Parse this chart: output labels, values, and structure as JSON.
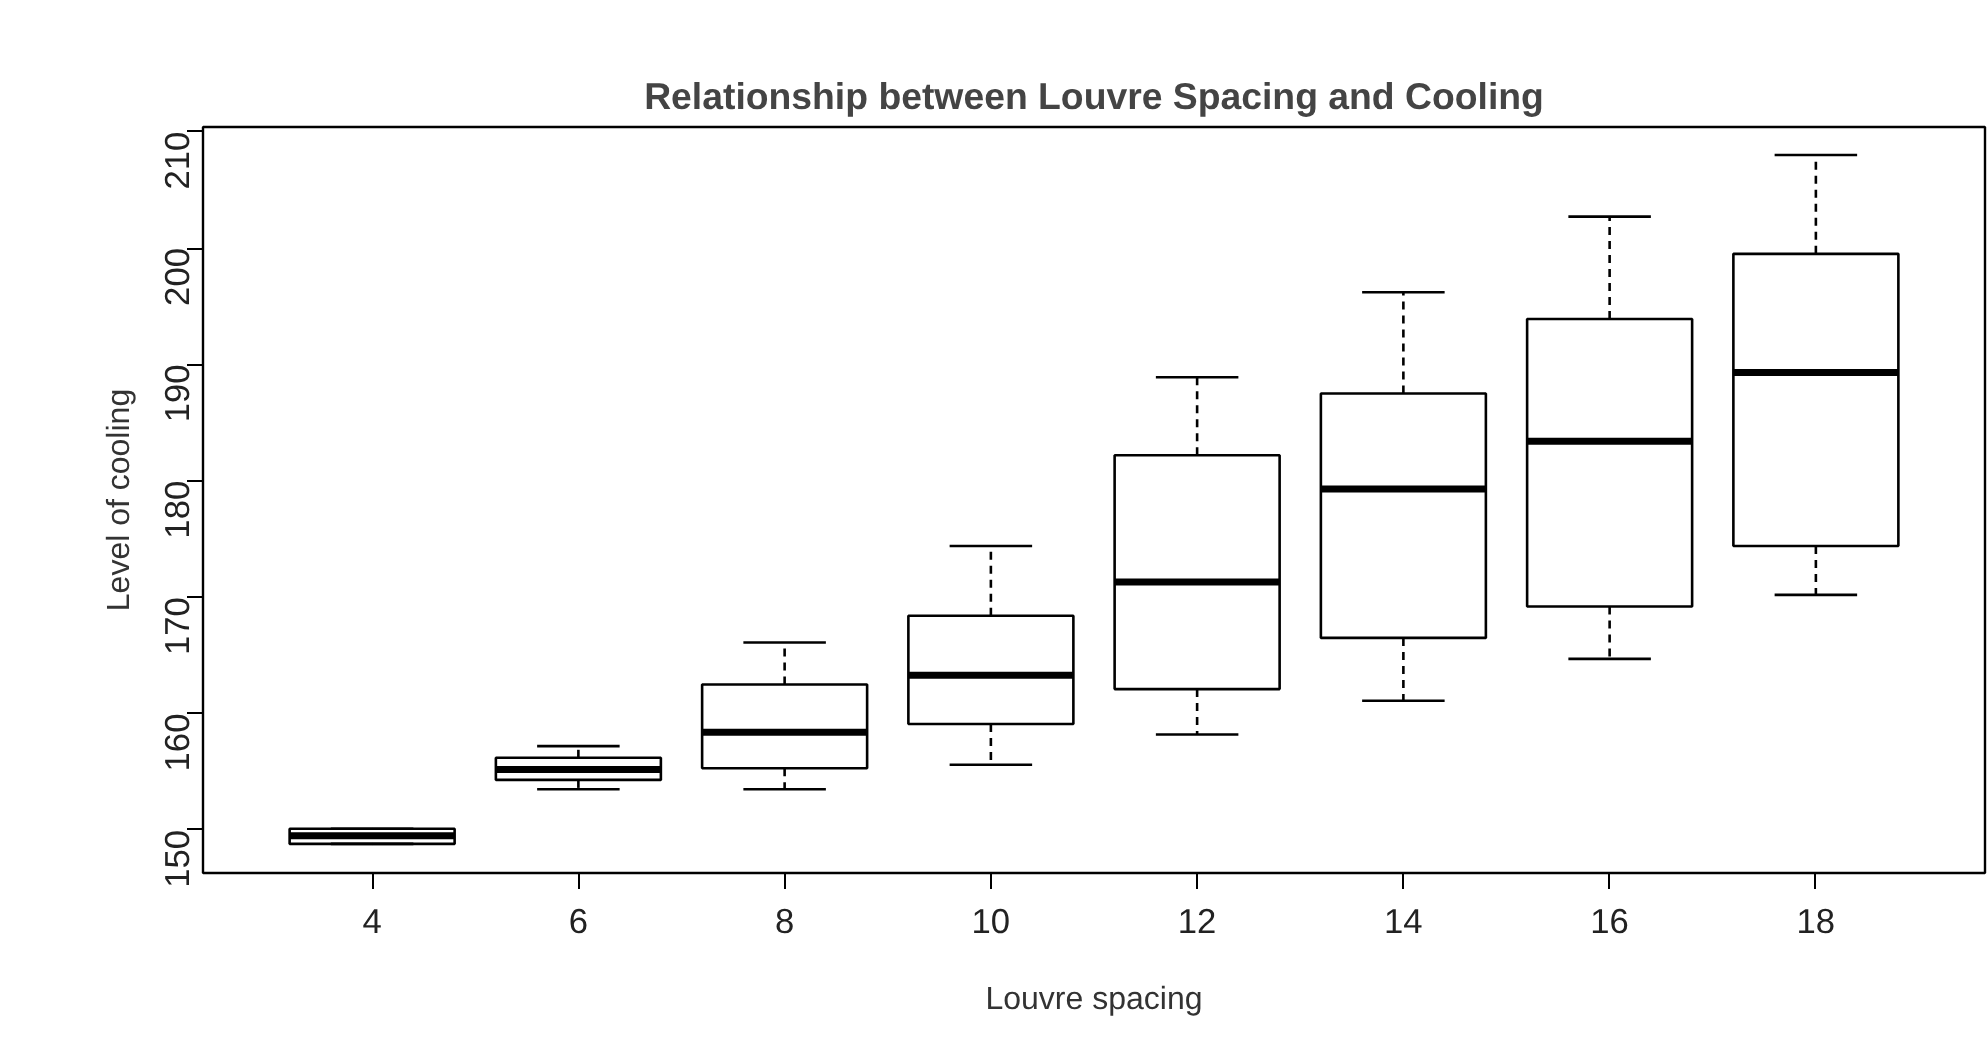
{
  "chart_data": {
    "type": "box",
    "title": "Relationship between Louvre Spacing and Cooling",
    "xlabel": "Louvre spacing",
    "ylabel": "Level of cooling",
    "categories": [
      "4",
      "6",
      "8",
      "10",
      "12",
      "14",
      "16",
      "18"
    ],
    "boxes": [
      {
        "low": 148.8,
        "q1": 148.8,
        "median": 149.5,
        "q3": 150.1,
        "high": 150.1
      },
      {
        "low": 153.5,
        "q1": 154.3,
        "median": 155.2,
        "q3": 156.2,
        "high": 157.2
      },
      {
        "low": 153.5,
        "q1": 155.3,
        "median": 158.4,
        "q3": 162.5,
        "high": 166.1
      },
      {
        "low": 155.6,
        "q1": 159.1,
        "median": 163.3,
        "q3": 168.4,
        "high": 174.4
      },
      {
        "low": 158.2,
        "q1": 162.1,
        "median": 171.3,
        "q3": 182.2,
        "high": 188.9
      },
      {
        "low": 161.1,
        "q1": 166.5,
        "median": 179.3,
        "q3": 187.5,
        "high": 196.2
      },
      {
        "low": 164.7,
        "q1": 169.2,
        "median": 183.4,
        "q3": 193.9,
        "high": 202.7
      },
      {
        "low": 170.2,
        "q1": 174.4,
        "median": 189.3,
        "q3": 199.5,
        "high": 208.0
      }
    ],
    "ylim": [
      146.3,
      210.4
    ],
    "yticks": [
      150,
      160,
      170,
      180,
      190,
      200,
      210
    ],
    "grid": false
  }
}
